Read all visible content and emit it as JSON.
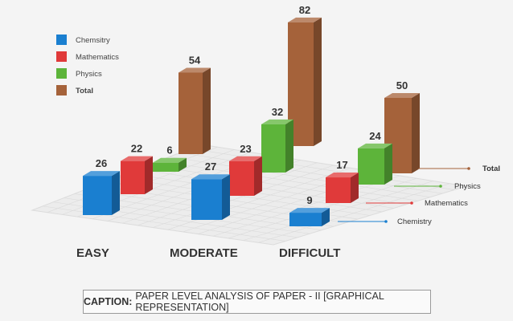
{
  "chart_data": {
    "type": "bar",
    "title": "",
    "categories": [
      "EASY",
      "MODERATE",
      "DIFFICULT"
    ],
    "series": [
      {
        "name": "Chemsitry",
        "axis_label": "Chemistry",
        "color": "#1a7fd0",
        "values": [
          26,
          27,
          9
        ]
      },
      {
        "name": "Mathematics",
        "axis_label": "Mathematics",
        "color": "#e03a3a",
        "values": [
          22,
          23,
          17
        ]
      },
      {
        "name": "Physics",
        "axis_label": "Physics",
        "color": "#5db43a",
        "values": [
          6,
          32,
          24
        ]
      },
      {
        "name": "Total",
        "axis_label": "Total",
        "color": "#a5623a",
        "values": [
          54,
          82,
          50
        ]
      }
    ],
    "legend_placement": "top-left",
    "xlabel": "",
    "ylabel": ""
  },
  "caption": {
    "label": "CAPTION:",
    "text": "PAPER LEVEL ANALYSIS OF PAPER - II [GRAPHICAL REPRESENTATION]"
  }
}
